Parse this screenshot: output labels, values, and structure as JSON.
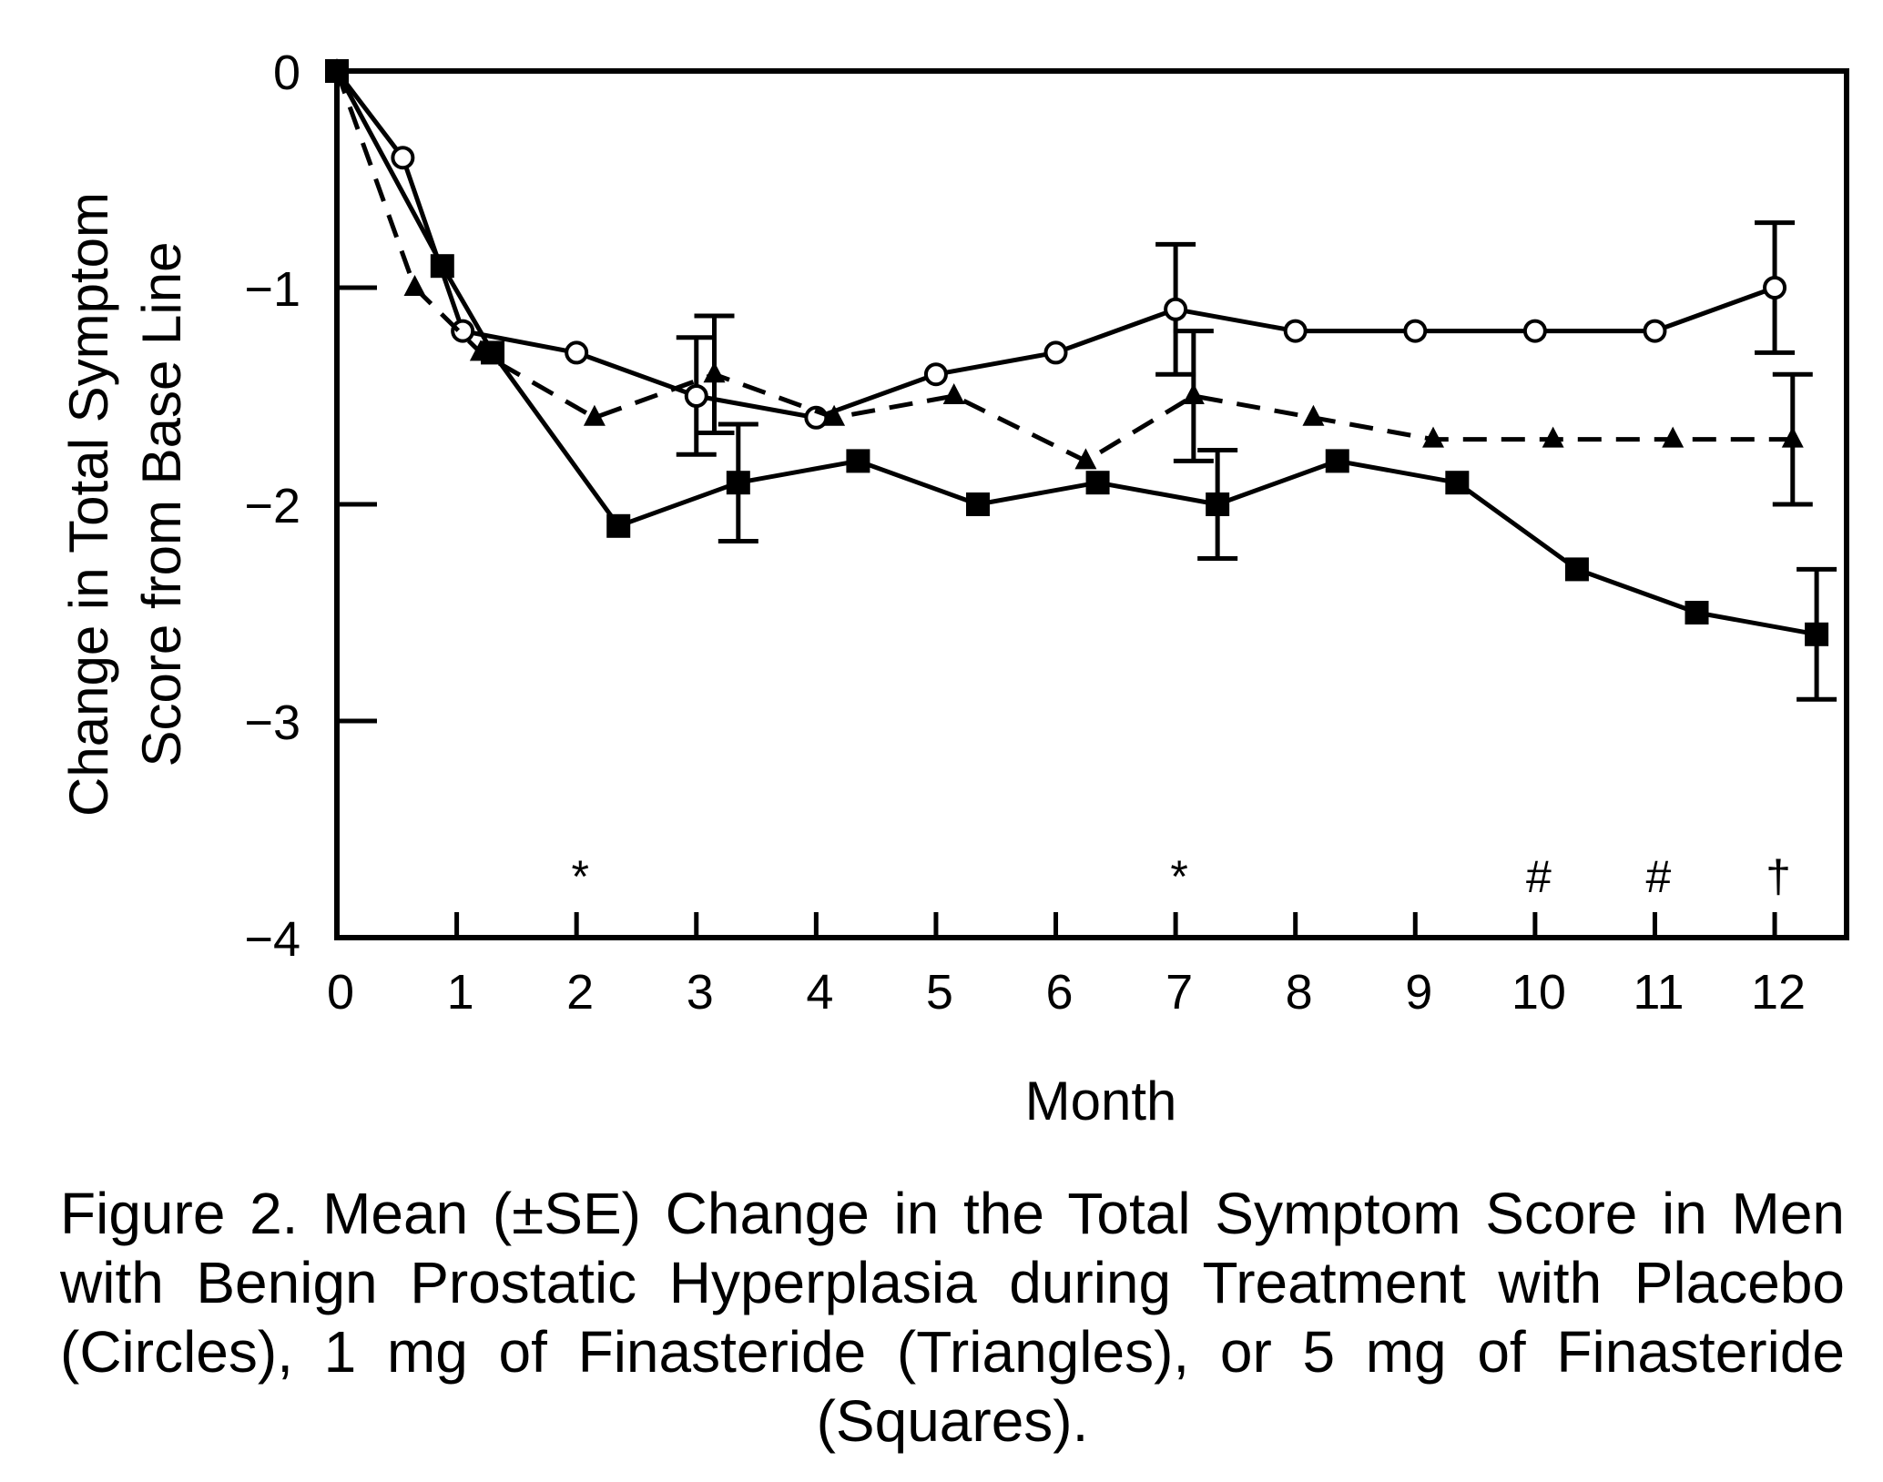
{
  "chart_data": {
    "type": "line",
    "xlabel": "Month",
    "ylabel_lines": [
      "Change in Total Symptom",
      "Score from Base Line"
    ],
    "xlim": [
      0,
      12.6
    ],
    "ylim": [
      -4,
      0
    ],
    "x_ticks": [
      0,
      1,
      2,
      3,
      4,
      5,
      6,
      7,
      8,
      9,
      10,
      11,
      12
    ],
    "x_tick_labels": [
      "0",
      "1",
      "2",
      "3",
      "4",
      "5",
      "6",
      "7",
      "8",
      "9",
      "10",
      "11",
      "12"
    ],
    "y_ticks": [
      0,
      -1,
      -2,
      -3,
      -4
    ],
    "y_tick_labels": [
      "0",
      "−1",
      "−2",
      "−3",
      "−4"
    ],
    "grid": false,
    "legend": "none",
    "series": [
      {
        "marker": "open-circle",
        "line": "solid",
        "x": [
          0,
          0.55,
          1.05,
          2.0,
          3.0,
          4.0,
          5.0,
          6.0,
          7.0,
          8.0,
          9.0,
          10.0,
          11.0,
          12.0
        ],
        "y": [
          0,
          -0.4,
          -1.2,
          -1.3,
          -1.5,
          -1.6,
          -1.4,
          -1.3,
          -1.1,
          -1.2,
          -1.2,
          -1.2,
          -1.2,
          -1.0
        ],
        "errors": [
          {
            "x": 3.0,
            "low": -1.77,
            "high": -1.23
          },
          {
            "x": 7.0,
            "low": -1.4,
            "high": -0.8
          },
          {
            "x": 12.0,
            "low": -1.3,
            "high": -0.7
          }
        ]
      },
      {
        "marker": "filled-triangle",
        "line": "dashed",
        "x": [
          0,
          0.65,
          1.2,
          2.15,
          3.15,
          4.15,
          5.15,
          6.25,
          7.15,
          8.15,
          9.15,
          10.15,
          11.15,
          12.15
        ],
        "y": [
          0,
          -1.0,
          -1.3,
          -1.6,
          -1.4,
          -1.6,
          -1.5,
          -1.8,
          -1.5,
          -1.6,
          -1.7,
          -1.7,
          -1.7,
          -1.7
        ],
        "errors": [
          {
            "x": 3.15,
            "low": -1.67,
            "high": -1.13
          },
          {
            "x": 7.15,
            "low": -1.8,
            "high": -1.2
          },
          {
            "x": 12.15,
            "low": -2.0,
            "high": -1.4
          }
        ]
      },
      {
        "marker": "filled-square",
        "line": "solid",
        "x": [
          0,
          0.88,
          1.3,
          2.35,
          3.35,
          4.35,
          5.35,
          6.35,
          7.35,
          8.35,
          9.35,
          10.35,
          11.35,
          12.35
        ],
        "y": [
          0,
          -0.9,
          -1.3,
          -2.1,
          -1.9,
          -1.8,
          -2.0,
          -1.9,
          -2.0,
          -1.8,
          -1.9,
          -2.3,
          -2.5,
          -2.6
        ],
        "errors": [
          {
            "x": 3.35,
            "low": -2.17,
            "high": -1.63
          },
          {
            "x": 7.35,
            "low": -2.25,
            "high": -1.75
          },
          {
            "x": 12.35,
            "low": -2.9,
            "high": -2.3
          }
        ]
      }
    ],
    "annotations": [
      {
        "x": 2,
        "text": "*"
      },
      {
        "x": 7,
        "text": "*"
      },
      {
        "x": 10,
        "text": "#"
      },
      {
        "x": 11,
        "text": "#"
      },
      {
        "x": 12,
        "text": "†"
      }
    ]
  },
  "caption": "Figure 2. Mean (±SE) Change in the Total Symptom Score in Men with Benign Prostatic Hyperplasia during Treatment with Placebo (Circles), 1 mg of Finasteride (Triangles), or 5 mg of Finasteride (Squares)."
}
